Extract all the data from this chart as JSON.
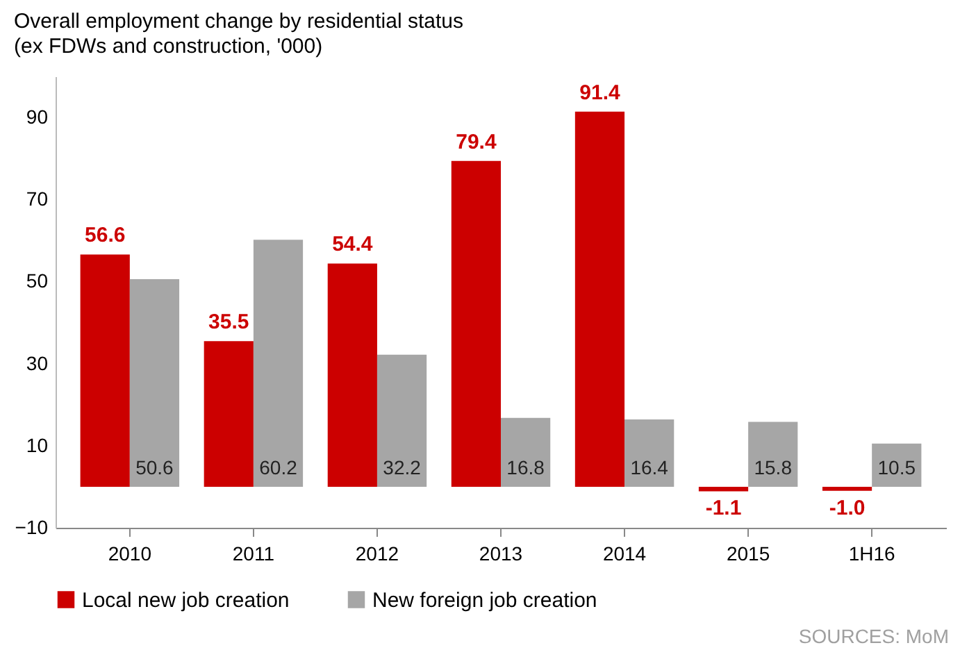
{
  "chart_data": {
    "type": "bar",
    "title": "Overall employment change by residential status",
    "subtitle": "(ex FDWs and construction, '000)",
    "categories": [
      "2010",
      "2011",
      "2012",
      "2013",
      "2014",
      "2015",
      "1H16"
    ],
    "series": [
      {
        "name": "Local new job creation",
        "color": "#cc0000",
        "values": [
          56.6,
          35.5,
          54.4,
          79.4,
          91.4,
          -1.1,
          -1.0
        ],
        "value_labels": [
          "56.6",
          "35.5",
          "54.4",
          "79.4",
          "91.4",
          "-1.1",
          "-1.0"
        ]
      },
      {
        "name": "New foreign job creation",
        "color": "#a6a6a6",
        "values": [
          50.6,
          60.2,
          32.2,
          16.8,
          16.4,
          15.8,
          10.5
        ],
        "value_labels": [
          "50.6",
          "60.2",
          "32.2",
          "16.8",
          "16.4",
          "15.8",
          "10.5"
        ]
      }
    ],
    "ylim": [
      -10,
      100
    ],
    "yticks": [
      -10,
      10,
      30,
      50,
      70,
      90
    ],
    "grid": false,
    "legend": "bottom",
    "annotations": [
      "SOURCES: MoM"
    ]
  }
}
